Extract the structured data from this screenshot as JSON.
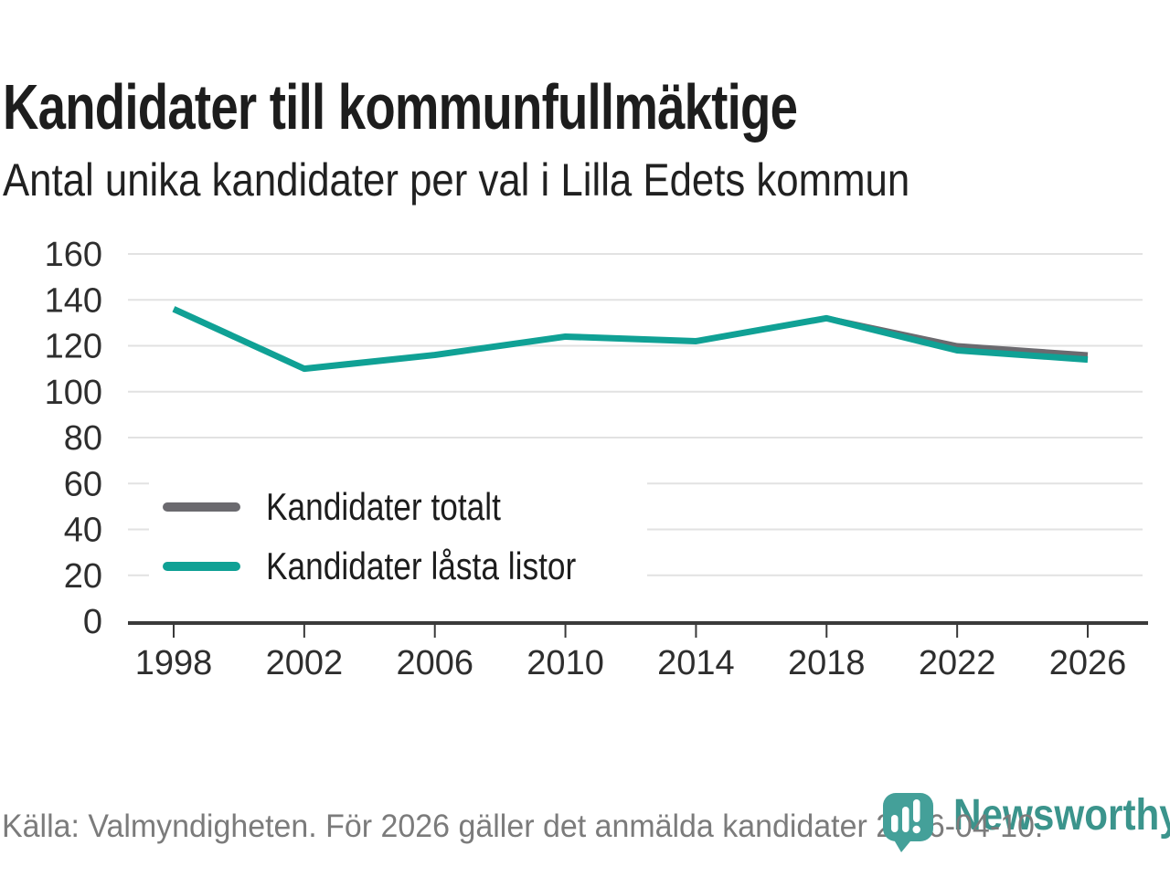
{
  "header": {
    "title": "Kandidater till kommunfullmäktige",
    "subtitle": "Antal unika kandidater per val i Lilla Edets kommun"
  },
  "chart_data": {
    "type": "line",
    "title": "Kandidater till kommunfullmäktige",
    "subtitle": "Antal unika kandidater per val i Lilla Edets kommun",
    "x": [
      1998,
      2002,
      2006,
      2010,
      2014,
      2018,
      2022,
      2026
    ],
    "series": [
      {
        "name": "Kandidater totalt",
        "color": "#6b6a6f",
        "values": [
          136,
          110,
          116,
          124,
          122,
          132,
          120,
          116
        ]
      },
      {
        "name": "Kandidater låsta listor",
        "color": "#10a195",
        "values": [
          136,
          110,
          116,
          124,
          122,
          132,
          118,
          114
        ]
      }
    ],
    "xlabel": "",
    "ylabel": "",
    "ylim": [
      0,
      160
    ],
    "yticks": [
      0,
      20,
      40,
      60,
      80,
      100,
      120,
      140,
      160
    ],
    "grid": true,
    "legend_position": "inside-left"
  },
  "colors": {
    "gridline": "#e2e2e2",
    "axis": "#3a3a3a",
    "brand_teal": "#3b948c",
    "pin_teal": "#44a099",
    "background": "#ffffff"
  },
  "footer": {
    "source": "Källa: Valmyndigheten. För 2026 gäller det anmälda kandidater 2026-04-10.",
    "brand": "Newsworthy"
  }
}
